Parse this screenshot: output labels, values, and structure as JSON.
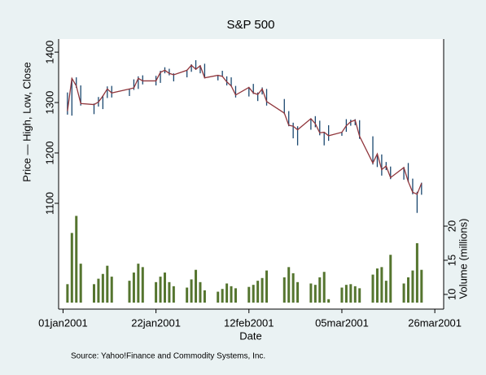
{
  "chart_data": {
    "type": "stock",
    "title": "S&P 500",
    "ylabel": "Price — High, Low, Close",
    "y2label": "Volume (millions)",
    "xlabel": "Date",
    "note": "Source:  Yahoo!Finance and Commodity Systems, Inc.",
    "x": [
      "2001-01-02",
      "2001-01-03",
      "2001-01-04",
      "2001-01-05",
      "2001-01-08",
      "2001-01-09",
      "2001-01-10",
      "2001-01-11",
      "2001-01-12",
      "2001-01-16",
      "2001-01-17",
      "2001-01-18",
      "2001-01-19",
      "2001-01-22",
      "2001-01-23",
      "2001-01-24",
      "2001-01-25",
      "2001-01-26",
      "2001-01-29",
      "2001-01-30",
      "2001-01-31",
      "2001-02-01",
      "2001-02-02",
      "2001-02-05",
      "2001-02-06",
      "2001-02-07",
      "2001-02-08",
      "2001-02-09",
      "2001-02-12",
      "2001-02-13",
      "2001-02-14",
      "2001-02-15",
      "2001-02-16",
      "2001-02-20",
      "2001-02-21",
      "2001-02-22",
      "2001-02-23",
      "2001-02-26",
      "2001-02-27",
      "2001-02-28",
      "2001-03-01",
      "2001-03-02",
      "2001-03-05",
      "2001-03-06",
      "2001-03-07",
      "2001-03-08",
      "2001-03-09",
      "2001-03-12",
      "2001-03-13",
      "2001-03-14",
      "2001-03-15",
      "2001-03-16",
      "2001-03-19",
      "2001-03-20",
      "2001-03-21",
      "2001-03-22",
      "2001-03-23"
    ],
    "high": [
      1320,
      1348,
      1350,
      1334,
      1298,
      1311,
      1314,
      1332,
      1333,
      1327,
      1346,
      1352,
      1354,
      1353,
      1363,
      1370,
      1367,
      1358,
      1365,
      1376,
      1384,
      1374,
      1377,
      1355,
      1363,
      1352,
      1350,
      1333,
      1331,
      1337,
      1320,
      1330,
      1327,
      1307,
      1283,
      1260,
      1253,
      1267,
      1273,
      1264,
      1241,
      1255,
      1242,
      1267,
      1266,
      1267,
      1265,
      1233,
      1198,
      1197,
      1182,
      1173,
      1172,
      1180,
      1149,
      1123,
      1141
    ],
    "low": [
      1276,
      1274,
      1329,
      1294,
      1277,
      1292,
      1287,
      1309,
      1310,
      1313,
      1325,
      1327,
      1336,
      1334,
      1339,
      1358,
      1354,
      1342,
      1350,
      1361,
      1365,
      1358,
      1348,
      1344,
      1352,
      1334,
      1332,
      1310,
      1312,
      1317,
      1303,
      1316,
      1294,
      1277,
      1253,
      1229,
      1215,
      1246,
      1251,
      1235,
      1215,
      1224,
      1234,
      1242,
      1254,
      1255,
      1228,
      1177,
      1172,
      1155,
      1166,
      1148,
      1147,
      1142,
      1118,
      1081,
      1117
    ],
    "close": [
      1283,
      1348,
      1333,
      1298,
      1296,
      1301,
      1313,
      1327,
      1319,
      1327,
      1329,
      1348,
      1343,
      1343,
      1360,
      1364,
      1358,
      1355,
      1364,
      1374,
      1366,
      1373,
      1349,
      1354,
      1352,
      1341,
      1333,
      1315,
      1330,
      1319,
      1316,
      1327,
      1302,
      1279,
      1255,
      1253,
      1246,
      1268,
      1258,
      1240,
      1241,
      1234,
      1241,
      1254,
      1262,
      1265,
      1233,
      1180,
      1198,
      1167,
      1174,
      1151,
      1171,
      1143,
      1122,
      1118,
      1140
    ],
    "volume": [
      11.5,
      19.0,
      21.5,
      14.5,
      11.5,
      12.3,
      13.0,
      14.2,
      12.6,
      12.0,
      13.2,
      14.5,
      14.0,
      11.8,
      12.6,
      13.2,
      11.8,
      11.2,
      11.0,
      12.2,
      13.6,
      11.8,
      10.6,
      10.4,
      10.8,
      11.6,
      11.2,
      10.9,
      11.1,
      11.4,
      12.0,
      12.4,
      13.5,
      12.5,
      14.0,
      13.1,
      11.8,
      11.6,
      11.4,
      12.5,
      13.3,
      9.3,
      11.0,
      11.4,
      11.5,
      11.2,
      10.9,
      12.9,
      13.8,
      14.0,
      12.0,
      15.8,
      11.6,
      12.5,
      13.5,
      17.5,
      13.6
    ],
    "hl_color": "#1a476f",
    "close_color": "#90353b",
    "volume_color": "#55752f",
    "xlim": [
      "2000-12-31",
      "2001-03-28"
    ],
    "xticks": [
      {
        "value": "2001-01-01",
        "label": "01jan2001"
      },
      {
        "value": "2001-01-22",
        "label": "22jan2001"
      },
      {
        "value": "2001-02-12",
        "label": "12feb2001"
      },
      {
        "value": "2001-03-05",
        "label": "05mar2001"
      },
      {
        "value": "2001-03-26",
        "label": "26mar2001"
      }
    ],
    "ylim": [
      903,
      1426
    ],
    "yticks": [
      1100,
      1200,
      1300,
      1400
    ],
    "y2lim": [
      8.8,
      47.4
    ],
    "y2ticks": [
      10,
      15,
      20
    ]
  }
}
